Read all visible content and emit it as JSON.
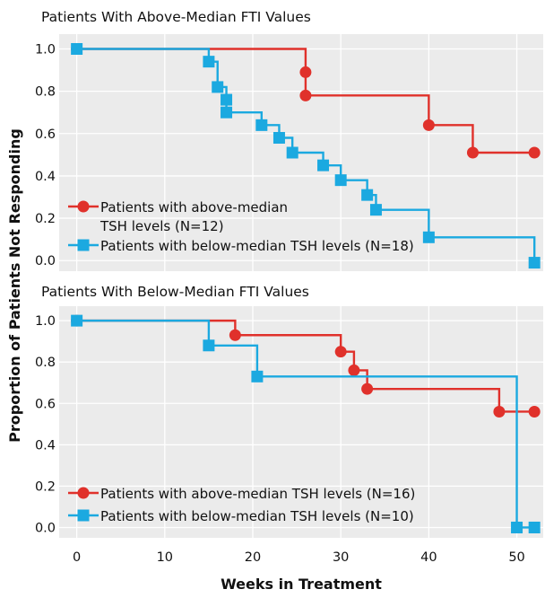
{
  "figure": {
    "ylabel": "Proportion of Patients Not Responding",
    "xlabel": "Weeks in Treatment"
  },
  "colors": {
    "red": "#e0312b",
    "blue": "#1ba9e0",
    "panel_bg": "#ebebeb",
    "grid": "#ffffff"
  },
  "chart_data": [
    {
      "type": "line",
      "step": true,
      "title": "Patients With Above-Median FTI Values",
      "xlim": [
        -2,
        53
      ],
      "ylim": [
        -0.05,
        1.07
      ],
      "xticks": [
        0,
        10,
        20,
        30,
        40,
        50
      ],
      "yticks": [
        "1.0",
        "0.8",
        "0.6",
        "0.4",
        "0.2",
        "0.0"
      ],
      "legend_position": "bottom-left",
      "series": [
        {
          "name": "Patients with above-median TSH levels (N=12)",
          "legend_lines": [
            "Patients with above-median",
            "TSH levels (N=12)"
          ],
          "color": "#e0312b",
          "marker": "circle",
          "x": [
            0,
            26,
            26,
            40,
            45,
            52
          ],
          "y": [
            1.0,
            0.89,
            0.78,
            0.64,
            0.51,
            0.51
          ]
        },
        {
          "name": "Patients with below-median TSH levels (N=18)",
          "legend_lines": [
            "Patients with below-median TSH levels (N=18)"
          ],
          "color": "#1ba9e0",
          "marker": "square",
          "x": [
            0,
            15,
            16,
            17,
            17,
            21,
            23,
            24.5,
            28,
            30,
            33,
            34,
            40,
            52
          ],
          "y": [
            1.0,
            0.94,
            0.82,
            0.76,
            0.7,
            0.64,
            0.58,
            0.51,
            0.45,
            0.38,
            0.31,
            0.24,
            0.11,
            -0.01
          ]
        }
      ]
    },
    {
      "type": "line",
      "step": true,
      "title": "Patients With Below-Median FTI Values",
      "xlim": [
        -2,
        53
      ],
      "ylim": [
        -0.05,
        1.07
      ],
      "xticks": [
        0,
        10,
        20,
        30,
        40,
        50
      ],
      "xtick_labels": [
        "0",
        "10",
        "20",
        "30",
        "40",
        "50"
      ],
      "yticks": [
        "1.0",
        "0.8",
        "0.6",
        "0.4",
        "0.2",
        "0.0"
      ],
      "legend_position": "bottom-left",
      "series": [
        {
          "name": "Patients with above-median TSH levels (N=16)",
          "legend_lines": [
            "Patients with above-median TSH levels (N=16)"
          ],
          "color": "#e0312b",
          "marker": "circle",
          "x": [
            0,
            18,
            30,
            31.5,
            33,
            48,
            52
          ],
          "y": [
            1.0,
            0.93,
            0.85,
            0.76,
            0.67,
            0.56,
            0.56
          ]
        },
        {
          "name": "Patients with below-median TSH levels (N=10)",
          "legend_lines": [
            "Patients with below-median TSH levels (N=10)"
          ],
          "color": "#1ba9e0",
          "marker": "square",
          "x": [
            0,
            15,
            20.5,
            50,
            52
          ],
          "y": [
            1.0,
            0.88,
            0.73,
            0.0,
            0.0
          ]
        }
      ]
    }
  ]
}
